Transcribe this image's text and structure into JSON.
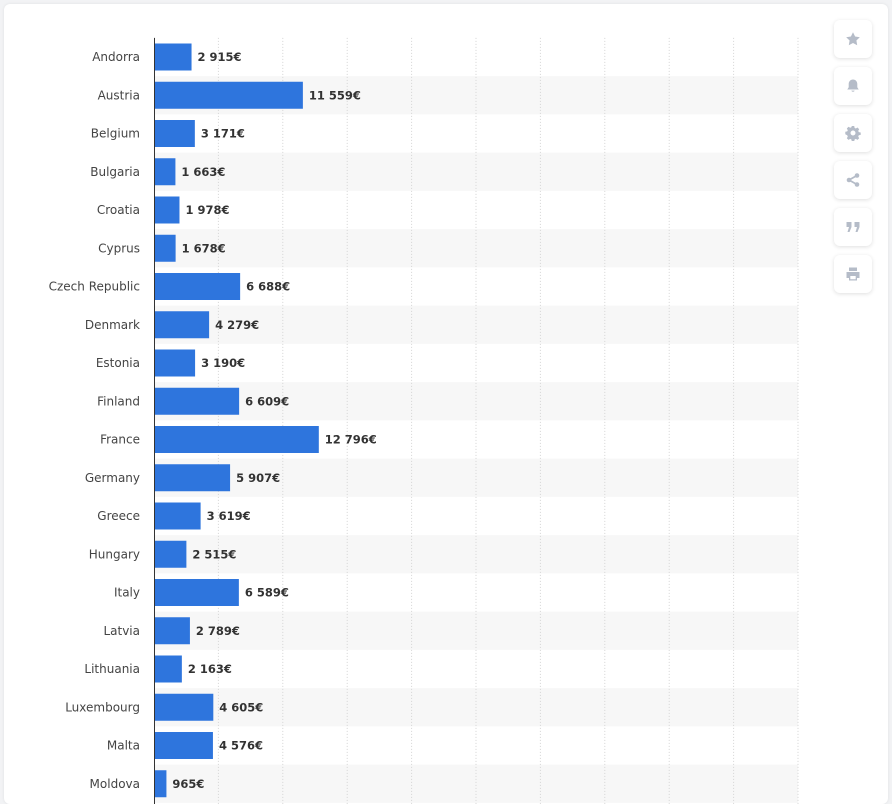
{
  "chart_data": {
    "type": "bar",
    "orientation": "horizontal",
    "title": "",
    "xlabel": "",
    "ylabel": "",
    "value_suffix": "€",
    "xlim": [
      0,
      50000
    ],
    "grid": true,
    "categories": [
      "Andorra",
      "Austria",
      "Belgium",
      "Bulgaria",
      "Croatia",
      "Cyprus",
      "Czech Republic",
      "Denmark",
      "Estonia",
      "Finland",
      "France",
      "Germany",
      "Greece",
      "Hungary",
      "Italy",
      "Latvia",
      "Lithuania",
      "Luxembourg",
      "Malta",
      "Moldova"
    ],
    "values": [
      2915,
      11559,
      3171,
      1663,
      1978,
      1678,
      6688,
      4279,
      3190,
      6609,
      12796,
      5907,
      3619,
      2515,
      6589,
      2789,
      2163,
      4605,
      4576,
      965
    ],
    "value_labels": [
      "2 915€",
      "11 559€",
      "3 171€",
      "1 663€",
      "1 978€",
      "1 678€",
      "6 688€",
      "4 279€",
      "3 190€",
      "6 609€",
      "12 796€",
      "5 907€",
      "3 619€",
      "2 515€",
      "6 589€",
      "2 789€",
      "2 163€",
      "4 605€",
      "4 576€",
      "965€"
    ],
    "bar_color": "#2e75dd"
  },
  "toolbar": {
    "buttons": [
      {
        "name": "favorite-button",
        "icon": "star-icon"
      },
      {
        "name": "notification-button",
        "icon": "bell-icon"
      },
      {
        "name": "settings-button",
        "icon": "gear-icon"
      },
      {
        "name": "share-button",
        "icon": "share-icon"
      },
      {
        "name": "cite-button",
        "icon": "quote-icon"
      },
      {
        "name": "print-button",
        "icon": "printer-icon"
      }
    ]
  }
}
